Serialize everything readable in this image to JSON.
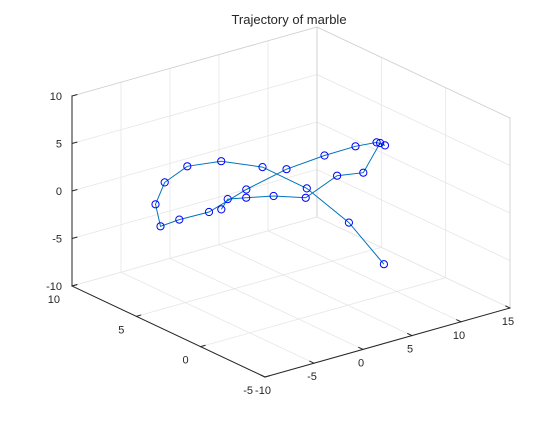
{
  "chart_data": {
    "type": "line",
    "projection": "3d",
    "title": "Trajectory of marble",
    "xlabel": "",
    "ylabel": "",
    "zlabel": "",
    "xlim": [
      -10,
      15
    ],
    "ylim": [
      -5,
      10
    ],
    "zlim": [
      -10,
      10
    ],
    "xticks": [
      -10,
      -5,
      0,
      5,
      10,
      15
    ],
    "yticks": [
      -5,
      0,
      5,
      10
    ],
    "zticks": [
      -10,
      -5,
      0,
      5,
      10
    ],
    "xtick_labels": [
      "-10",
      "-5",
      "0",
      "5",
      "10",
      "15"
    ],
    "ytick_labels": [
      "-5",
      "0",
      "5",
      "10"
    ],
    "ztick_labels": [
      "-10",
      "-5",
      "0",
      "5",
      "10"
    ],
    "grid": true,
    "box": "open",
    "marker": "circle",
    "line_color": "#0072bd",
    "series": [
      {
        "x": [
          10.94,
          10.48,
          8.96,
          6.56,
          3.57,
          0.33,
          -2.79,
          -5.44,
          -7.32,
          -8.18,
          -7.95,
          -6.64,
          -4.41,
          -1.55,
          1.55,
          4.59,
          7.17,
          8.98,
          9.8,
          9.53,
          8.25,
          6.19,
          3.69,
          1.16,
          -1.03
        ],
        "y": [
          1.71,
          4.08,
          6.19,
          7.81,
          8.74,
          8.91,
          8.29,
          6.98,
          5.16,
          3.05,
          0.91,
          -0.99,
          -2.41,
          -3.19,
          -3.24,
          -2.56,
          -1.25,
          0.51,
          2.44,
          4.27,
          5.74,
          6.66,
          6.89,
          6.4,
          5.23
        ],
        "z": [
          -8.5,
          -5.5,
          -2.8,
          -0.9,
          0.0,
          0.3,
          -0.1,
          -0.8,
          -1.4,
          0.9,
          3.0,
          6.2,
          8.6,
          9.7,
          9.8,
          8.9,
          7.0,
          5.6,
          1.0,
          -0.4,
          -3.3,
          -3.1,
          -2.7,
          -1.8,
          -1.5
        ]
      }
    ]
  }
}
